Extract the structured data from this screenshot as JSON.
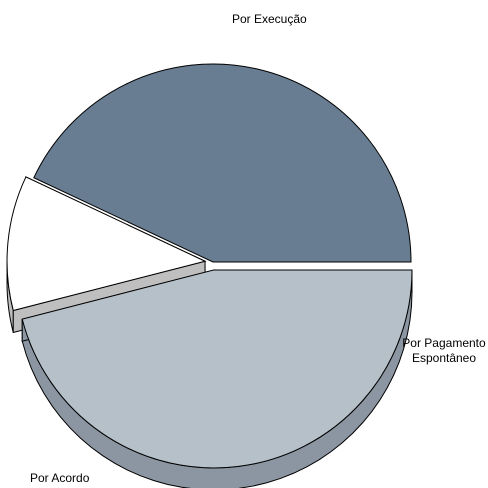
{
  "chart_data": {
    "type": "pie",
    "style": "3d-exploded",
    "slices": [
      {
        "label": "Por Execução",
        "value": 43,
        "color": "#687d92",
        "side_color": "#3d4b59",
        "exploded": false
      },
      {
        "label": "Por Pagamento\nEspontâneo",
        "value": 11,
        "color": "#ffffff",
        "side_color": "#bfbfbf",
        "exploded": true
      },
      {
        "label": "Por Acordo",
        "value": 46,
        "color": "#b6c0c9",
        "side_color": "#8b96a2",
        "exploded": true
      }
    ],
    "outline_color": "#000000"
  }
}
